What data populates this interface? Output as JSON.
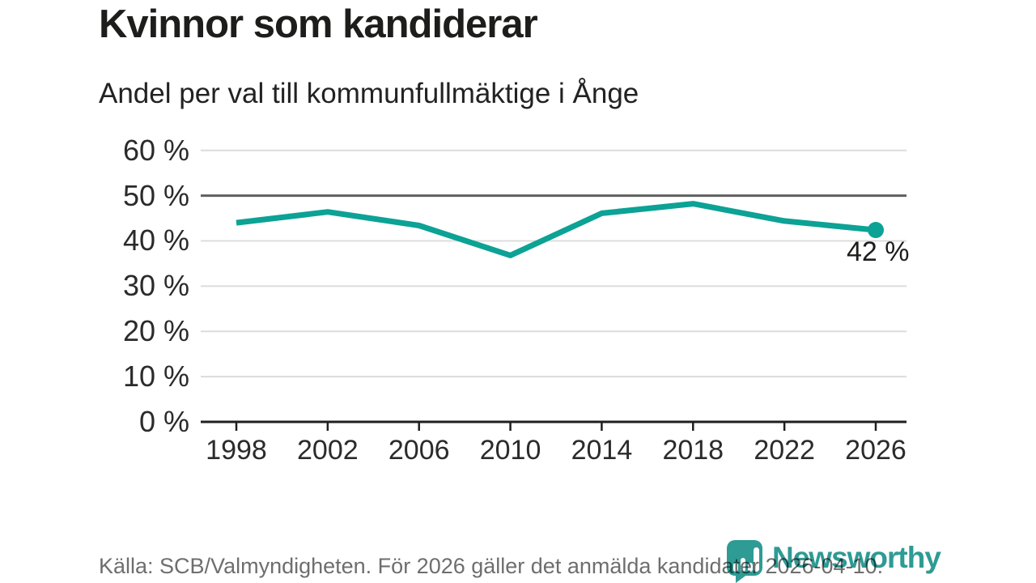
{
  "page": {
    "title": "Kvinnor som kandiderar",
    "subtitle": "Andel per val till kommunfullmäktige i Ånge",
    "footer_source": "Källa: SCB/Valmyndigheten. För 2026 gäller det anmälda kandidater 2026-04-10.",
    "brand_name": "Newsworthy"
  },
  "chart_data": {
    "type": "line",
    "title": "Kvinnor som kandiderar",
    "subtitle": "Andel per val till kommunfullmäktige i Ånge",
    "categories": [
      "1998",
      "2002",
      "2006",
      "2010",
      "2014",
      "2018",
      "2022",
      "2026"
    ],
    "values": [
      44,
      46.4,
      43.4,
      36.8,
      46.1,
      48.2,
      44.4,
      42.4
    ],
    "end_point_label": "42 %",
    "unit": "%",
    "ylim": [
      0,
      60
    ],
    "y_ticks": [
      0,
      10,
      20,
      30,
      40,
      50,
      60
    ],
    "y_tick_labels": [
      "0 %",
      "10 %",
      "20 %",
      "30 %",
      "40 %",
      "50 %",
      "60 %"
    ],
    "emphasized_gridline": 50,
    "grid": true,
    "legend": "none",
    "colors": {
      "line": "#0ca295",
      "end_dot": "#0ca295",
      "grid": "#dcdcdc",
      "grid_emphasis": "#5f5f5f",
      "axis": "#1f1f1f",
      "brand_teal": "#2e9b94"
    }
  }
}
